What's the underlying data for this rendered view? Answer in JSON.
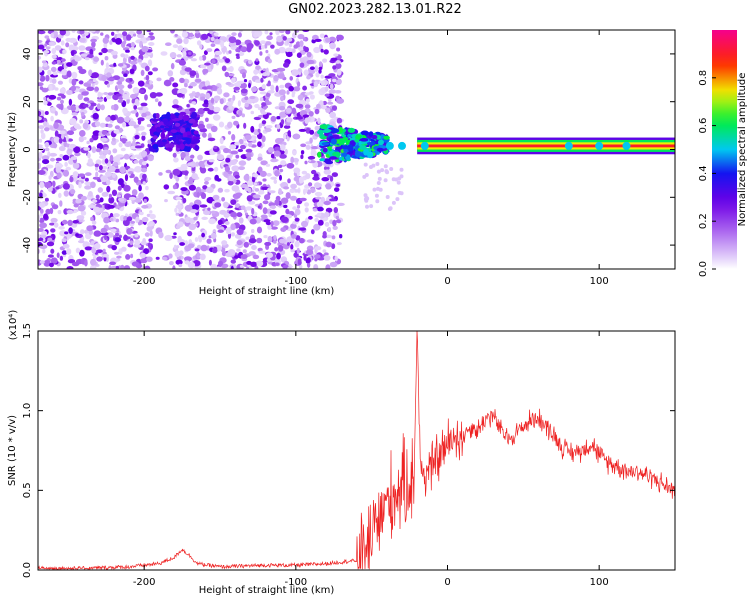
{
  "figure_title": "GN02.2023.282.13.01.R22",
  "colors": {
    "snr_line": "#ee2222",
    "axis": "#000000"
  },
  "chart_data": [
    {
      "type": "heatmap",
      "title": "",
      "xlabel": "Height of straight line (km)",
      "ylabel": "Frequency (Hz)",
      "xlim": [
        -270,
        150
      ],
      "ylim": [
        -50,
        50
      ],
      "x_ticks": [
        -200,
        -100,
        0,
        100
      ],
      "x_tick_labels": [
        "-200",
        "-100",
        "0",
        "100"
      ],
      "y_ticks": [
        -40,
        -20,
        0,
        20,
        40
      ],
      "y_tick_labels": [
        "-40",
        "-20",
        "0",
        "20",
        "40"
      ],
      "colorbar": {
        "label": "Normalized spectral amplitude",
        "range": [
          0,
          1
        ],
        "ticks": [
          0.0,
          0.2,
          0.4,
          0.6,
          0.8
        ],
        "tick_labels": [
          "0.0",
          "0.2",
          "0.4",
          "0.6",
          "0.8"
        ],
        "colormap": "rainbow (white → purple → blue → cyan → green → yellow → red → magenta)"
      },
      "features": {
        "noise_region_x": [
          -270,
          -75
        ],
        "noise_gap_x": [
          -195,
          -180
        ],
        "strong_cluster": {
          "x": [
            -195,
            -165
          ],
          "freq": [
            0,
            15
          ],
          "amplitude": 0.3
        },
        "onset_cluster": {
          "x": [
            -85,
            -40
          ],
          "freq": [
            -5,
            12
          ],
          "amplitude": 0.5
        },
        "carrier_line": {
          "x": [
            -20,
            150
          ],
          "freq": 1.5,
          "amplitude": 0.95
        }
      }
    },
    {
      "type": "line",
      "title": "",
      "xlabel": "Height of straight line (km)",
      "ylabel": "SNR (10 * v/v)",
      "y_multiplier": "(x10⁴)",
      "xlim": [
        -270,
        150
      ],
      "ylim": [
        0,
        1.5
      ],
      "x_ticks": [
        -200,
        -100,
        0,
        100
      ],
      "x_tick_labels": [
        "-200",
        "-100",
        "0",
        "100"
      ],
      "y_ticks": [
        0.0,
        0.5,
        1.0,
        1.5
      ],
      "y_tick_labels": [
        "0.0",
        "0.5",
        "1.0",
        "1.5"
      ],
      "series": [
        {
          "x": [
            -270,
            -240,
            -210,
            -190,
            -180,
            -175,
            -170,
            -165,
            -150,
            -120,
            -100,
            -80,
            -60,
            -55,
            -50,
            -45,
            -40,
            -35,
            -30,
            -25,
            -22,
            -20,
            -18,
            -15,
            -10,
            -5,
            0,
            5,
            10,
            15,
            20,
            25,
            30,
            35,
            40,
            45,
            50,
            55,
            60,
            65,
            70,
            75,
            80,
            85,
            90,
            95,
            100,
            105,
            110,
            115,
            120,
            125,
            130,
            135,
            140,
            145,
            150
          ],
          "y": [
            0.01,
            0.01,
            0.02,
            0.04,
            0.08,
            0.13,
            0.09,
            0.04,
            0.02,
            0.03,
            0.03,
            0.04,
            0.06,
            0.12,
            0.22,
            0.32,
            0.42,
            0.48,
            0.52,
            0.55,
            0.6,
            1.55,
            0.65,
            0.6,
            0.65,
            0.72,
            0.78,
            0.85,
            0.83,
            0.9,
            0.88,
            0.95,
            0.97,
            0.88,
            0.82,
            0.86,
            0.9,
            0.94,
            0.96,
            0.9,
            0.85,
            0.78,
            0.74,
            0.74,
            0.76,
            0.8,
            0.72,
            0.68,
            0.66,
            0.64,
            0.62,
            0.62,
            0.6,
            0.58,
            0.55,
            0.52,
            0.5
          ]
        }
      ]
    }
  ]
}
